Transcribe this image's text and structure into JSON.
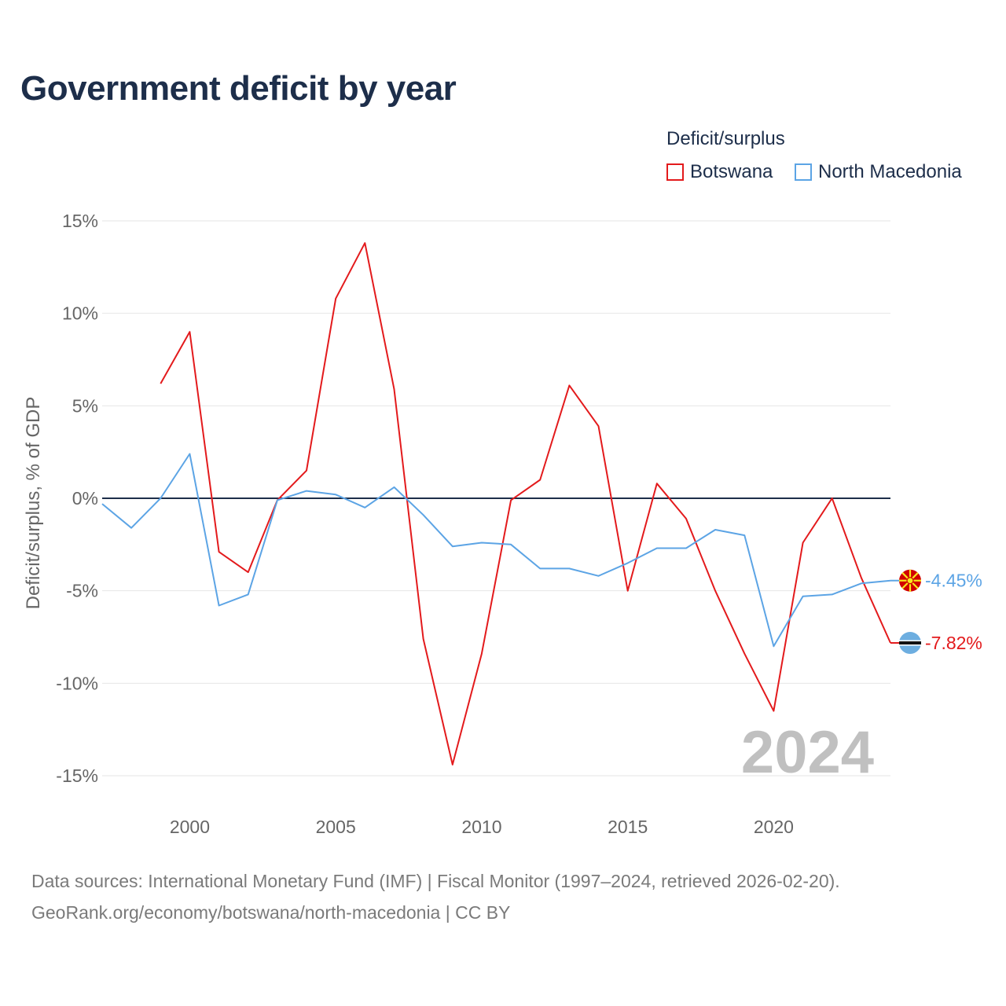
{
  "title": "Government deficit by year",
  "legend": {
    "title": "Deficit/surplus",
    "items": [
      {
        "label": "Botswana",
        "color": "#e31a1c"
      },
      {
        "label": "North Macedonia",
        "color": "#5ca4e5"
      }
    ]
  },
  "source": {
    "line1": "Data sources: International Monetary Fund (IMF) | Fiscal Monitor (1997–2024, retrieved 2026-02-20).",
    "line2": "GeoRank.org/economy/botswana/north-macedonia | CC BY"
  },
  "chart_data": {
    "type": "line",
    "title": "Government deficit by year",
    "xlabel": "",
    "ylabel": "Deficit/surplus, % of GDP",
    "xlim": [
      1997,
      2024
    ],
    "ylim": [
      -15,
      15
    ],
    "x_ticks": [
      2000,
      2005,
      2010,
      2015,
      2020
    ],
    "y_ticks": [
      15,
      10,
      5,
      0,
      -5,
      -10,
      -15
    ],
    "y_tick_labels": [
      "15%",
      "10%",
      "5%",
      "0%",
      "-5%",
      "-10%",
      "-15%"
    ],
    "watermark_year": "2024",
    "series": [
      {
        "name": "Botswana",
        "color": "#e31a1c",
        "end_label": "-7.82%",
        "end_marker": "blue-flag-icon",
        "points": [
          [
            1999,
            6.2
          ],
          [
            2000,
            9.0
          ],
          [
            2001,
            -2.9
          ],
          [
            2002,
            -4.0
          ],
          [
            2003,
            -0.1
          ],
          [
            2004,
            1.5
          ],
          [
            2005,
            10.8
          ],
          [
            2006,
            13.8
          ],
          [
            2007,
            5.9
          ],
          [
            2008,
            -7.6
          ],
          [
            2009,
            -14.4
          ],
          [
            2010,
            -8.4
          ],
          [
            2011,
            -0.1
          ],
          [
            2012,
            1.0
          ],
          [
            2013,
            6.1
          ],
          [
            2014,
            3.9
          ],
          [
            2015,
            -5.0
          ],
          [
            2016,
            0.8
          ],
          [
            2017,
            -1.1
          ],
          [
            2018,
            -5.0
          ],
          [
            2019,
            -8.4
          ],
          [
            2020,
            -11.5
          ],
          [
            2021,
            -2.4
          ],
          [
            2022,
            0.0
          ],
          [
            2023,
            -4.3
          ],
          [
            2024,
            -7.82
          ]
        ]
      },
      {
        "name": "North Macedonia",
        "color": "#5ca4e5",
        "end_label": "-4.45%",
        "end_marker": "red-sun-flag-icon",
        "points": [
          [
            1997,
            -0.3
          ],
          [
            1998,
            -1.6
          ],
          [
            1999,
            0.0
          ],
          [
            2000,
            2.4
          ],
          [
            2001,
            -5.8
          ],
          [
            2002,
            -5.2
          ],
          [
            2003,
            -0.1
          ],
          [
            2004,
            0.4
          ],
          [
            2005,
            0.2
          ],
          [
            2006,
            -0.5
          ],
          [
            2007,
            0.6
          ],
          [
            2008,
            -0.9
          ],
          [
            2009,
            -2.6
          ],
          [
            2010,
            -2.4
          ],
          [
            2011,
            -2.5
          ],
          [
            2012,
            -3.8
          ],
          [
            2013,
            -3.8
          ],
          [
            2014,
            -4.2
          ],
          [
            2015,
            -3.5
          ],
          [
            2016,
            -2.7
          ],
          [
            2017,
            -2.7
          ],
          [
            2018,
            -1.7
          ],
          [
            2019,
            -2.0
          ],
          [
            2020,
            -8.0
          ],
          [
            2021,
            -5.3
          ],
          [
            2022,
            -5.2
          ],
          [
            2023,
            -4.6
          ],
          [
            2024,
            -4.45
          ]
        ]
      }
    ]
  }
}
